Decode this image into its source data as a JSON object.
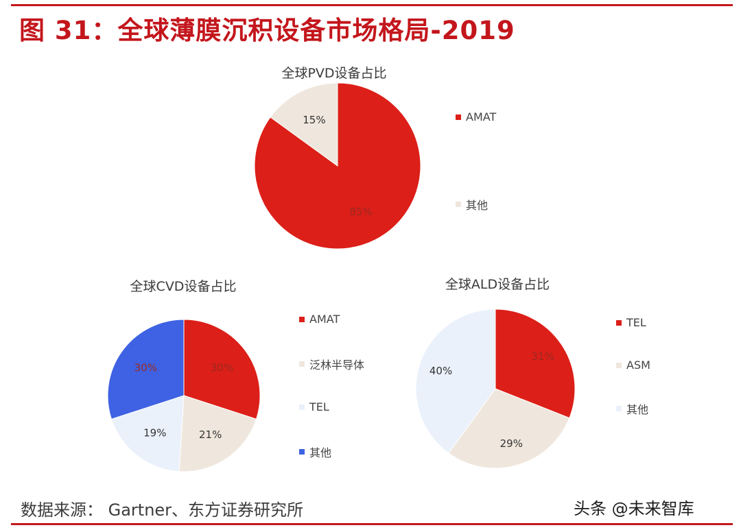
{
  "title": "图 31：全球薄膜沉积设备市场格局-2019",
  "source": "数据来源：  Gartner、东方证券研究所",
  "watermark": "头条 @未来智库",
  "colors": {
    "red": "#dc1f18",
    "beige": "#efe7dd",
    "lightblue": "#eaf1fb",
    "blue": "#3e62e3"
  },
  "chart_data": [
    {
      "type": "pie",
      "title": "全球PVD设备占比",
      "series": [
        {
          "labels": [
            "AMAT",
            "其他"
          ],
          "values": [
            85,
            15
          ],
          "data_labels": [
            "85%",
            "15%"
          ],
          "colors": [
            "#dc1f18",
            "#efe7dd"
          ]
        }
      ],
      "legend": "right"
    },
    {
      "type": "pie",
      "title": "全球CVD设备占比",
      "series": [
        {
          "labels": [
            "AMAT",
            "泛林半导体",
            "TEL",
            "其他"
          ],
          "values": [
            30,
            21,
            19,
            30
          ],
          "data_labels": [
            "30%",
            "21%",
            "19%",
            "30%"
          ],
          "colors": [
            "#dc1f18",
            "#efe7dd",
            "#eaf1fb",
            "#3e62e3"
          ]
        }
      ],
      "legend": "right"
    },
    {
      "type": "pie",
      "title": "全球ALD设备占比",
      "series": [
        {
          "labels": [
            "TEL",
            "ASM",
            "其他"
          ],
          "values": [
            31,
            29,
            40
          ],
          "data_labels": [
            "31%",
            "29%",
            "40%"
          ],
          "colors": [
            "#dc1f18",
            "#efe7dd",
            "#eaf1fb"
          ]
        }
      ],
      "legend": "right"
    }
  ]
}
